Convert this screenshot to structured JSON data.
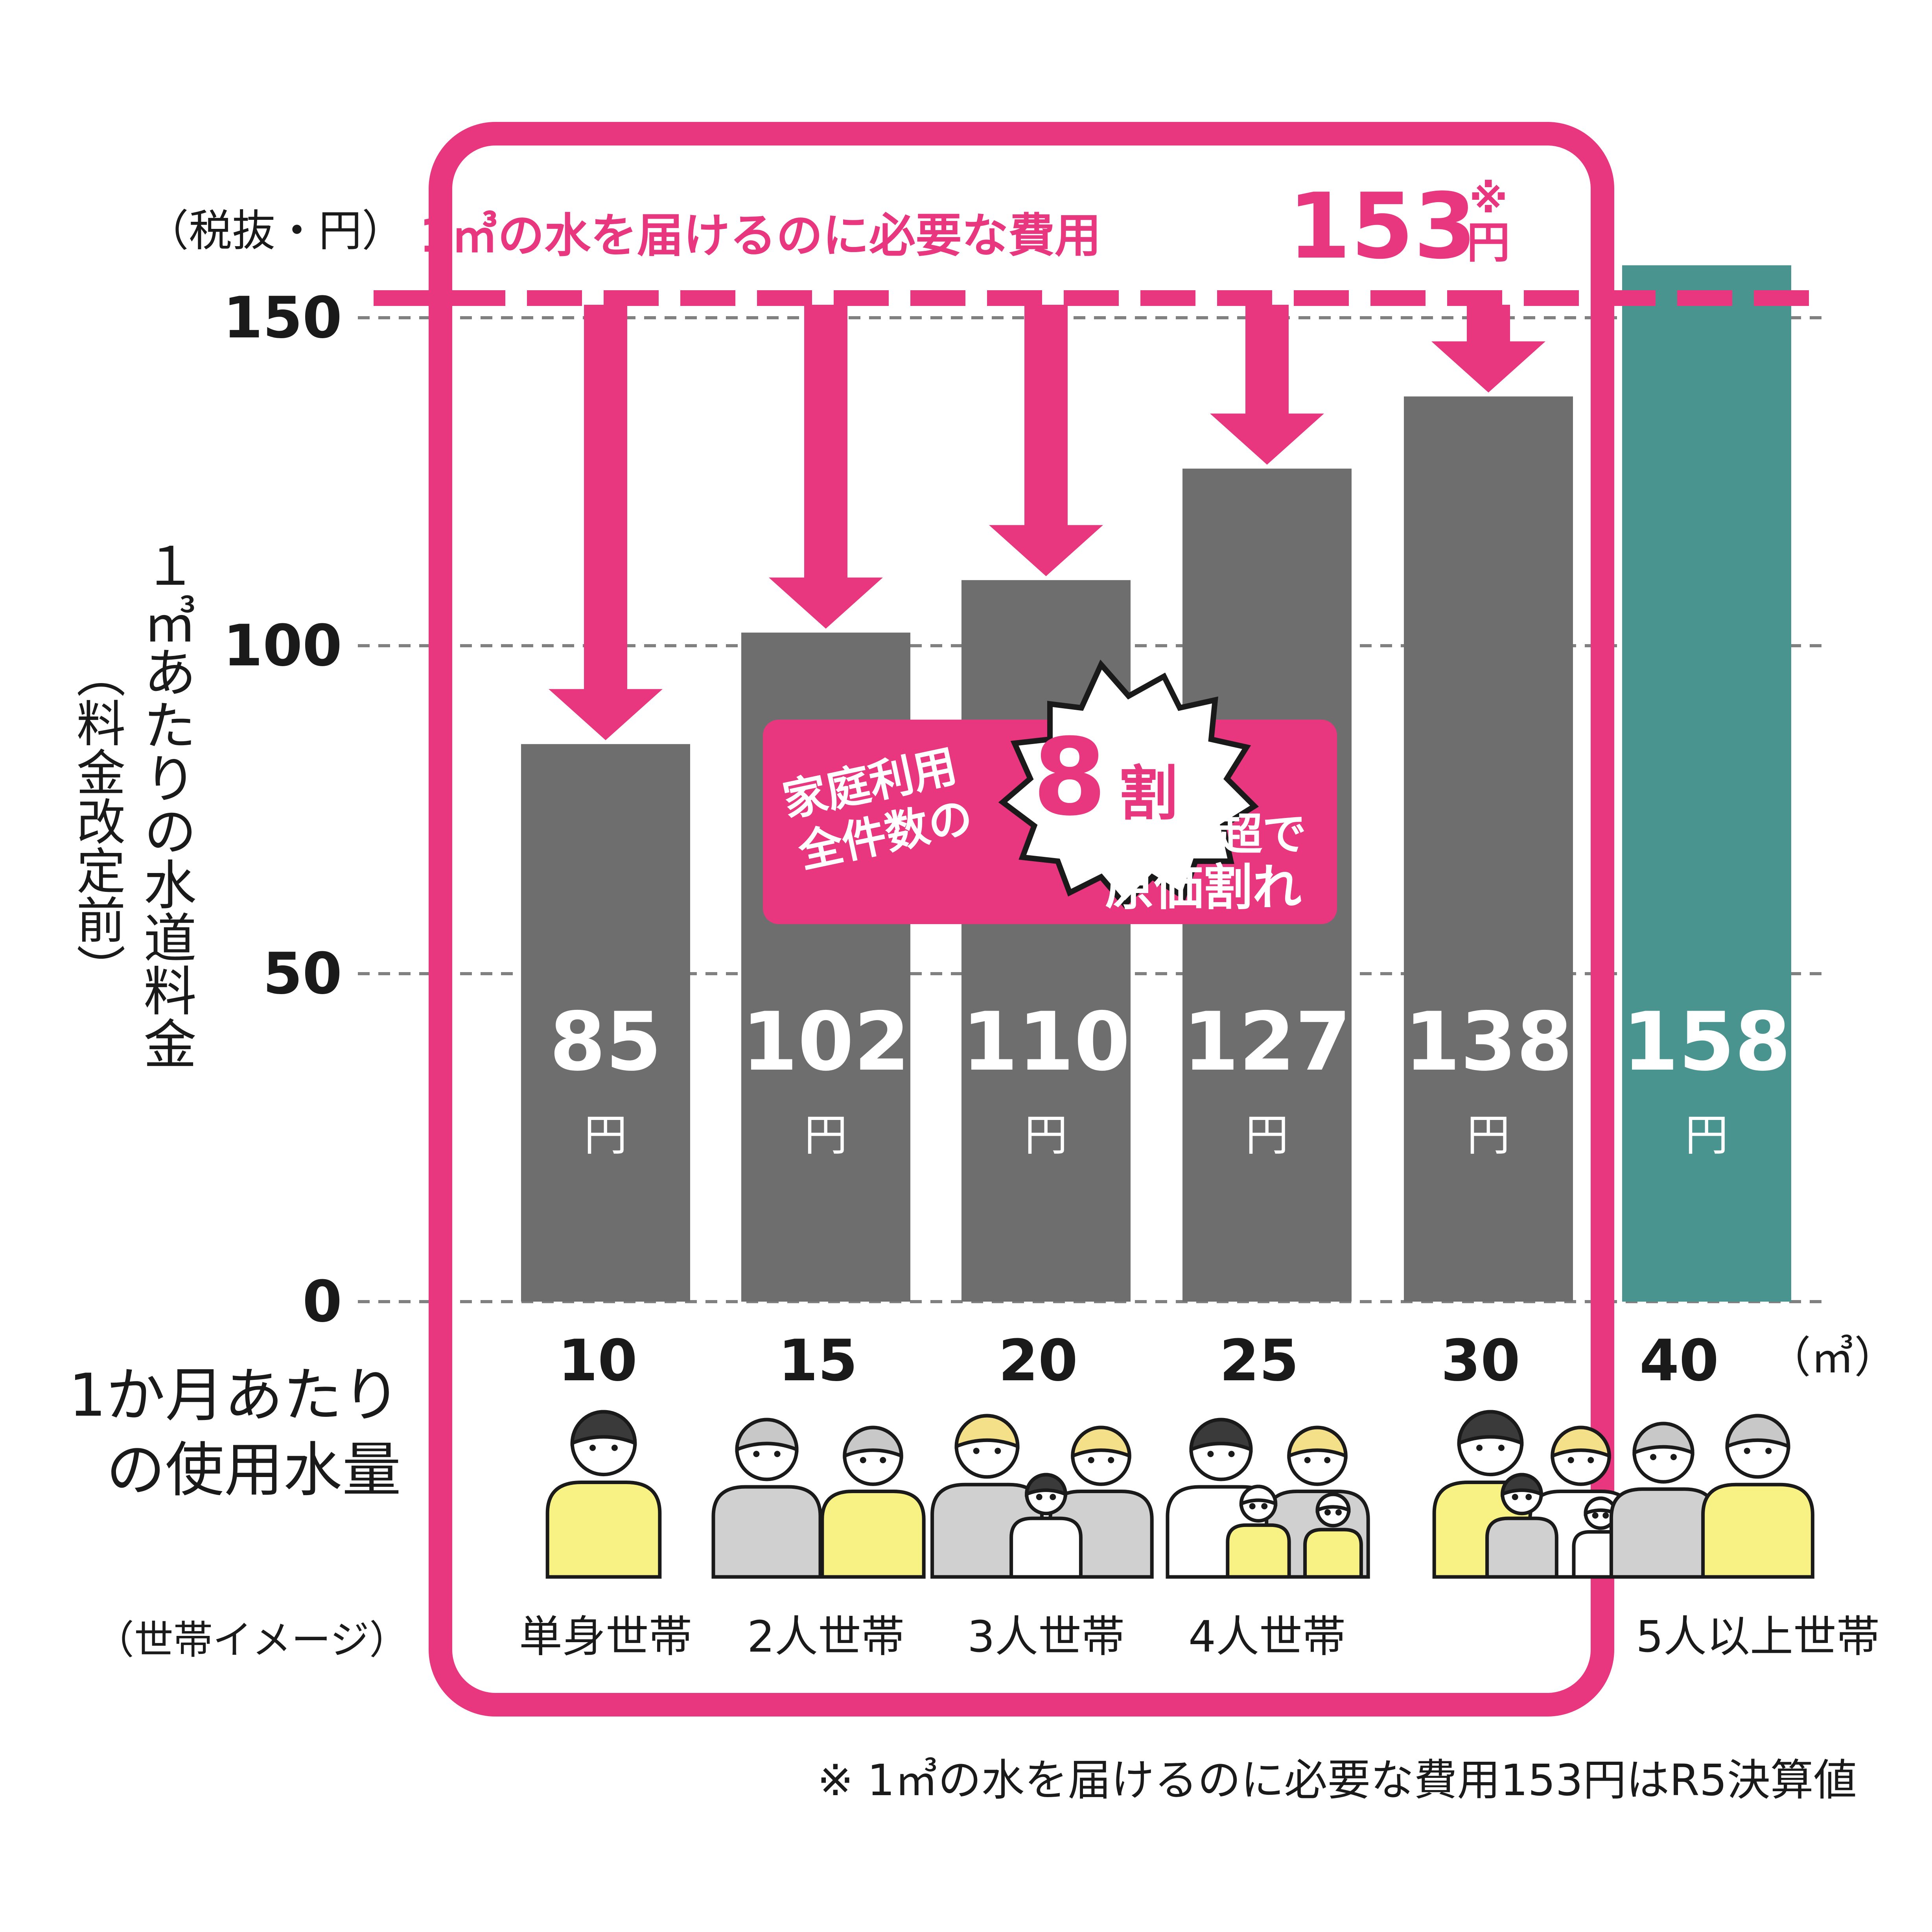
{
  "chart_data": {
    "type": "bar",
    "unit_label": "（税抜・円）",
    "ylabel_line1": "１㎥あたりの水道料金",
    "ylabel_line2": "（料金改定前）",
    "ylim": [
      0,
      150
    ],
    "yticks": [
      "0",
      "50",
      "100",
      "150"
    ],
    "xlabel": "1か月あたりの使用水量",
    "x_unit": "（㎥）",
    "household_caption": "（世帯イメージ）",
    "categories": [
      "10",
      "15",
      "20",
      "25",
      "30",
      "40"
    ],
    "values": [
      85,
      102,
      110,
      127,
      138,
      158
    ],
    "value_labels": [
      "85",
      "102",
      "110",
      "127",
      "138",
      "158"
    ],
    "value_unit": "円",
    "households": [
      "単身世帯",
      "2人世帯",
      "3人世帯",
      "4人世帯",
      "",
      "5人以上世帯"
    ],
    "cost_line": {
      "value": 153,
      "label_prefix": "1㎥の水を届けるのに必要な費用",
      "label_value": "153",
      "label_unit": "円",
      "mark": "※"
    },
    "callout": {
      "left_line1": "家庭利用",
      "left_line2": "全件数の",
      "big": "8",
      "big_unit": "割",
      "right_line1": "超で",
      "right_line2": "原価割れ"
    },
    "footnote": "※ 1㎥の水を届けるのに必要な費用153円はR5決算値",
    "colors": {
      "gray_bar": "#6e6e6e",
      "teal_bar": "#4a9490",
      "pink": "#e8377f",
      "text": "#1a1a1a",
      "grid": "#808080"
    },
    "icons": [
      "single-person-icon",
      "couple-icon",
      "family-of-three-icon",
      "family-of-four-icon",
      "family-of-five-icon",
      "elderly-couple-icon"
    ]
  }
}
